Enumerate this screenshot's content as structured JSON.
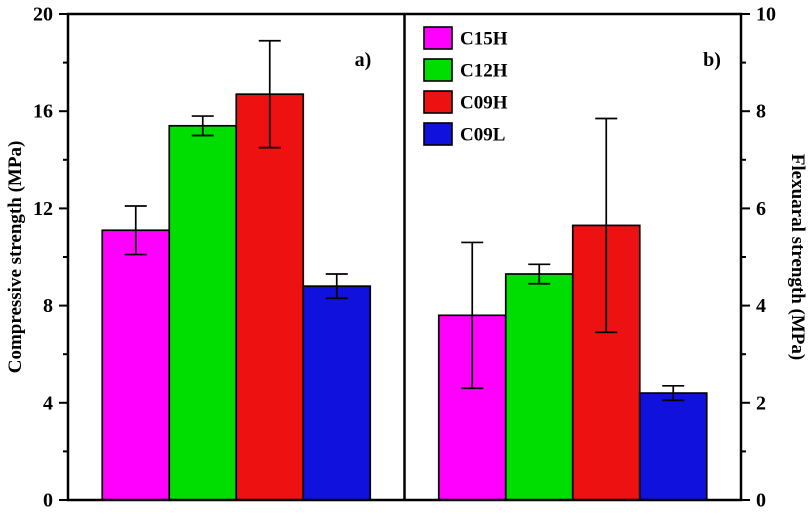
{
  "figure": {
    "panel_a_label": "a)",
    "panel_b_label": "b)",
    "left_axis_label": "Compressive strength (MPa)",
    "right_axis_label": "Flexuaral strength (MPa)",
    "frame_color": "#000000",
    "background": "#ffffff"
  },
  "legend": {
    "position": "top-center",
    "entries": [
      {
        "label": "C15H",
        "color": "#ff00ff"
      },
      {
        "label": "C12H",
        "color": "#00dd00"
      },
      {
        "label": "C09H",
        "color": "#ee1111"
      },
      {
        "label": "C09L",
        "color": "#1111dd"
      }
    ]
  },
  "chart_data": [
    {
      "type": "bar",
      "panel": "a",
      "title": "",
      "xlabel": "",
      "ylabel": "Compressive strength (MPa)",
      "axis_side": "left",
      "ylim": [
        0,
        20
      ],
      "yticks": [
        0,
        4,
        8,
        12,
        16,
        20
      ],
      "minor_ticks": [
        2,
        6,
        10,
        14,
        18
      ],
      "grid": false,
      "categories": [
        "C15H",
        "C12H",
        "C09H",
        "C09L"
      ],
      "values": [
        11.1,
        15.4,
        16.7,
        8.8
      ],
      "errors": [
        1.0,
        0.4,
        2.2,
        0.5
      ],
      "colors": [
        "#ff00ff",
        "#00dd00",
        "#ee1111",
        "#1111dd"
      ]
    },
    {
      "type": "bar",
      "panel": "b",
      "title": "",
      "xlabel": "",
      "ylabel": "Flexuaral strength (MPa)",
      "axis_side": "right",
      "ylim": [
        0,
        10
      ],
      "yticks": [
        0,
        2,
        4,
        6,
        8,
        10
      ],
      "minor_ticks": [
        1,
        3,
        5,
        7,
        9
      ],
      "grid": false,
      "categories": [
        "C15H",
        "C12H",
        "C09H",
        "C09L"
      ],
      "values": [
        3.8,
        4.65,
        5.65,
        2.2
      ],
      "errors": [
        1.5,
        0.2,
        2.2,
        0.15
      ],
      "colors": [
        "#ff00ff",
        "#00dd00",
        "#ee1111",
        "#1111dd"
      ]
    }
  ]
}
